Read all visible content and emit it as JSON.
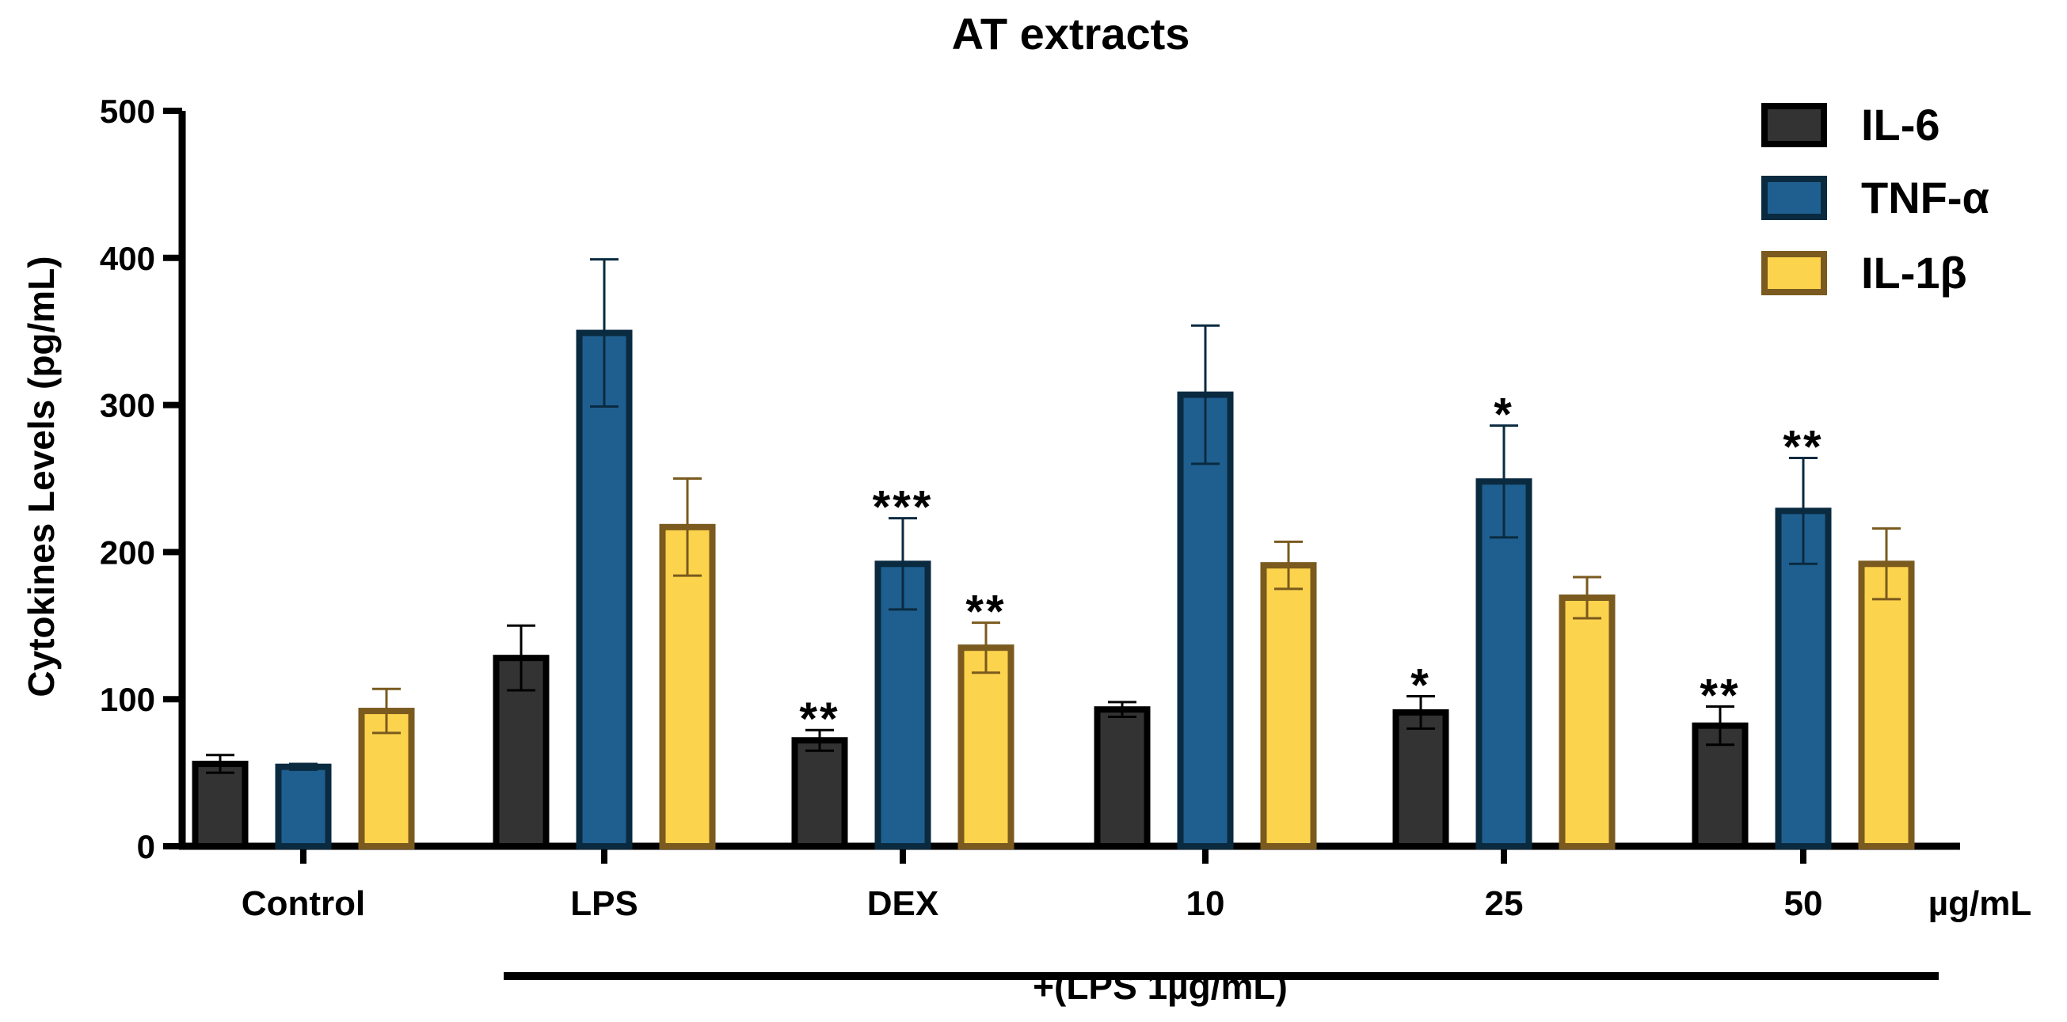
{
  "chart_data": {
    "type": "bar",
    "title": "AT extracts",
    "ylabel": "Cytokines Levels (pg/mL)",
    "xlabel": "",
    "ylim": [
      0,
      500
    ],
    "yticks": [
      0,
      100,
      200,
      300,
      400,
      500
    ],
    "categories": [
      "Control",
      "LPS",
      "DEX",
      "10",
      "25",
      "50"
    ],
    "unit_label": "µg/mL",
    "bracket_label": "+(LPS 1µg/mL)",
    "legend_position": "top-right",
    "series": [
      {
        "name": "IL-6",
        "fill": "#333333",
        "stroke": "#000000",
        "errcolor": "#000000",
        "values": [
          56,
          128,
          72,
          93,
          91,
          82
        ],
        "errors": [
          6,
          22,
          7,
          5,
          11,
          13
        ],
        "sig": [
          "",
          "",
          "**",
          "",
          "*",
          "**"
        ]
      },
      {
        "name": "TNF-α",
        "fill": "#1f5f8f",
        "stroke": "#0a2a40",
        "errcolor": "#0a2a40",
        "values": [
          54,
          349,
          192,
          307,
          248,
          228
        ],
        "errors": [
          2,
          50,
          31,
          47,
          38,
          36
        ],
        "sig": [
          "",
          "",
          "***",
          "",
          "*",
          "**"
        ]
      },
      {
        "name": "IL-1β",
        "fill": "#fcd34d",
        "stroke": "#7a5a1e",
        "errcolor": "#7a5a1e",
        "values": [
          92,
          217,
          135,
          191,
          169,
          192
        ],
        "errors": [
          15,
          33,
          17,
          16,
          14,
          24
        ],
        "sig": [
          "",
          "",
          "**",
          "",
          "",
          ""
        ]
      }
    ]
  }
}
